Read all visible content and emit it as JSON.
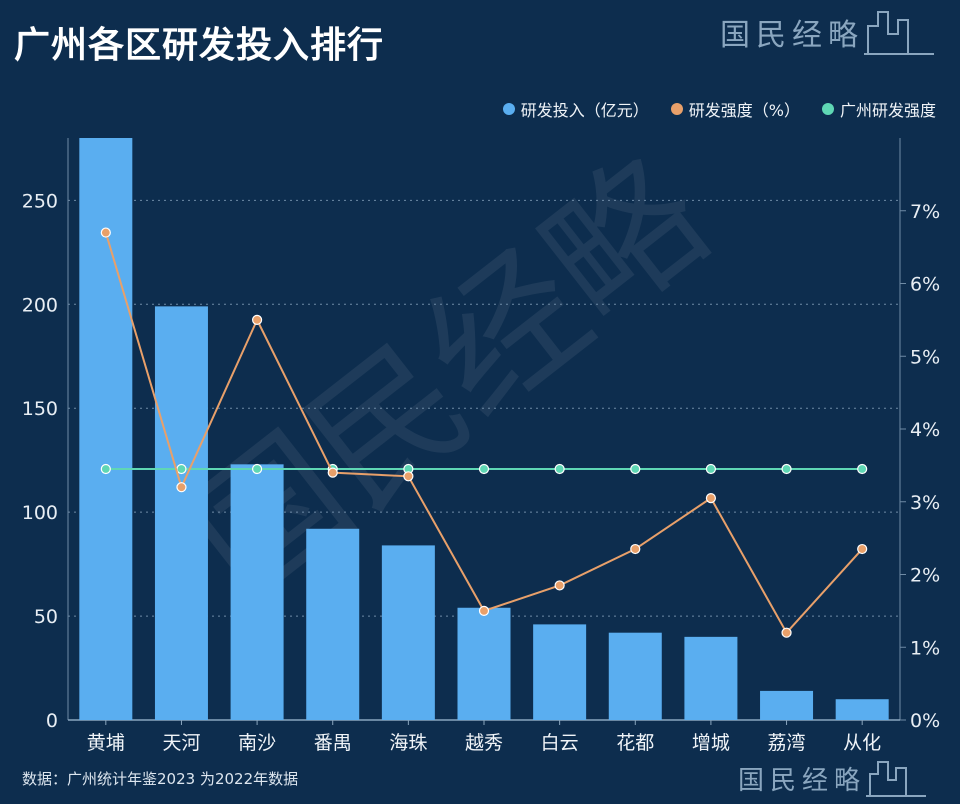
{
  "header": {
    "title": "广州各区研发投入排行",
    "logo_text": "国民经略"
  },
  "watermark": "国民经略",
  "footer": {
    "source": "数据：广州统计年鉴2023 为2022年数据",
    "logo_text": "国民经略"
  },
  "colors": {
    "bar": "#5aaef0",
    "intensity": "#e8a06a",
    "city_line": "#5fd7b4",
    "background": "#0d2d4e"
  },
  "chart_data": {
    "type": "bar",
    "categories": [
      "黄埔",
      "天河",
      "南沙",
      "番禺",
      "海珠",
      "越秀",
      "白云",
      "花都",
      "增城",
      "荔湾",
      "从化"
    ],
    "series": [
      {
        "name": "研发投入（亿元）",
        "type": "bar",
        "axis": "left",
        "values": [
          280,
          199,
          123,
          92,
          84,
          54,
          46,
          42,
          40,
          14,
          10
        ]
      },
      {
        "name": "研发强度（%）",
        "type": "line",
        "axis": "right",
        "values": [
          6.7,
          3.2,
          5.5,
          3.4,
          3.35,
          1.5,
          1.85,
          2.35,
          3.05,
          1.2,
          2.35
        ]
      },
      {
        "name": "广州研发强度",
        "type": "line",
        "axis": "right",
        "values": [
          3.45,
          3.45,
          3.45,
          3.45,
          3.45,
          3.45,
          3.45,
          3.45,
          3.45,
          3.45,
          3.45
        ]
      }
    ],
    "y_left": {
      "min": 0,
      "max": 280,
      "ticks": [
        "0",
        "50",
        "100",
        "150",
        "200",
        "250"
      ]
    },
    "y_right": {
      "min": 0,
      "max": 8,
      "ticks": [
        "0%",
        "1%",
        "2%",
        "3%",
        "4%",
        "5%",
        "6%",
        "7%"
      ]
    },
    "grid": "horizontal dotted",
    "legend_position": "top-right"
  }
}
